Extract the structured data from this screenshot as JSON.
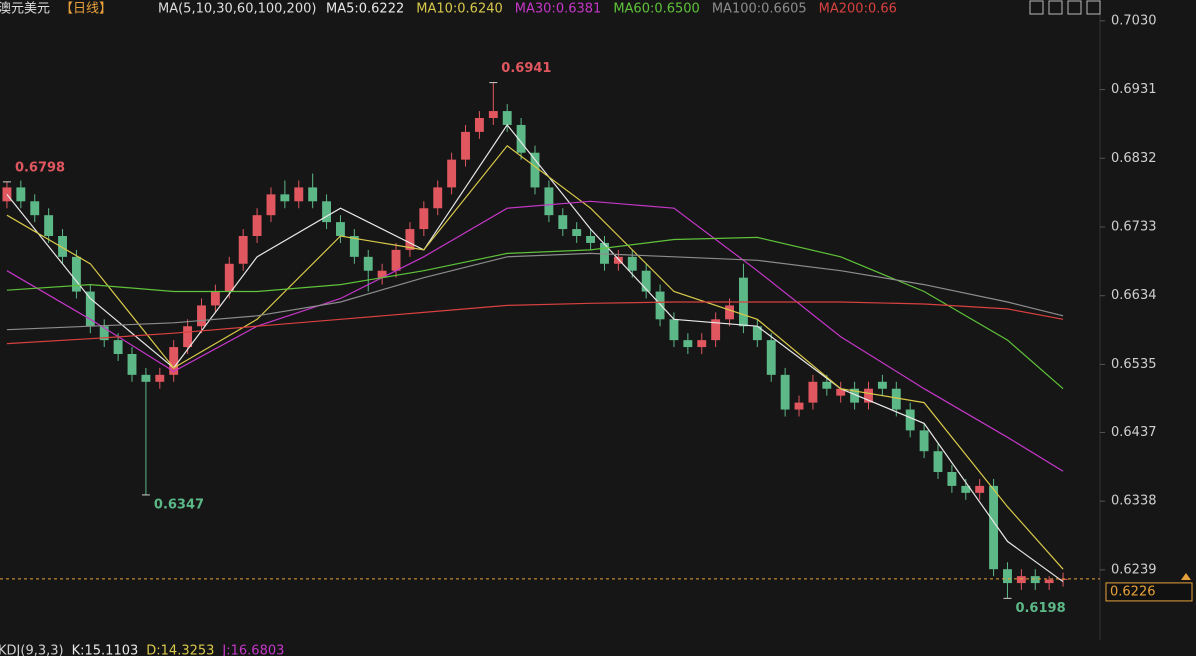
{
  "chart_data": {
    "type": "candlestick",
    "title": "澳元美元",
    "period": "【日线】",
    "ma_params": "MA(5,10,30,60,100,200)",
    "up_color": "#e0575f",
    "down_color": "#5db887",
    "open": [
      0.677,
      0.679,
      0.677,
      0.675,
      0.672,
      0.669,
      0.664,
      0.659,
      0.657,
      0.655,
      0.652,
      0.651,
      0.652,
      0.656,
      0.659,
      0.662,
      0.664,
      0.668,
      0.672,
      0.675,
      0.678,
      0.677,
      0.679,
      0.677,
      0.674,
      0.672,
      0.669,
      0.666,
      0.667,
      0.67,
      0.673,
      0.676,
      0.679,
      0.683,
      0.687,
      0.689,
      0.69,
      0.688,
      0.684,
      0.679,
      0.675,
      0.673,
      0.672,
      0.671,
      0.668,
      0.669,
      0.667,
      0.664,
      0.66,
      0.657,
      0.656,
      0.657,
      0.66,
      0.666,
      0.659,
      0.657,
      0.652,
      0.647,
      0.648,
      0.651,
      0.649,
      0.65,
      0.648,
      0.651,
      0.65,
      0.647,
      0.644,
      0.641,
      0.638,
      0.636,
      0.635,
      0.636,
      0.624,
      0.622,
      0.623,
      0.622,
      0.6225
    ],
    "high": [
      0.6798,
      0.68,
      0.678,
      0.676,
      0.673,
      0.67,
      0.665,
      0.66,
      0.658,
      0.656,
      0.653,
      0.653,
      0.657,
      0.66,
      0.663,
      0.665,
      0.669,
      0.673,
      0.676,
      0.679,
      0.68,
      0.68,
      0.681,
      0.678,
      0.675,
      0.673,
      0.67,
      0.668,
      0.671,
      0.674,
      0.677,
      0.68,
      0.684,
      0.688,
      0.69,
      0.6941,
      0.691,
      0.689,
      0.685,
      0.68,
      0.676,
      0.674,
      0.673,
      0.672,
      0.67,
      0.67,
      0.668,
      0.665,
      0.661,
      0.658,
      0.658,
      0.661,
      0.663,
      0.668,
      0.66,
      0.658,
      0.653,
      0.649,
      0.652,
      0.652,
      0.651,
      0.651,
      0.651,
      0.652,
      0.651,
      0.648,
      0.645,
      0.642,
      0.639,
      0.637,
      0.637,
      0.637,
      0.625,
      0.624,
      0.624,
      0.623,
      0.6235
    ],
    "low": [
      0.676,
      0.676,
      0.674,
      0.671,
      0.668,
      0.663,
      0.658,
      0.656,
      0.654,
      0.651,
      0.6347,
      0.65,
      0.651,
      0.655,
      0.658,
      0.661,
      0.663,
      0.667,
      0.671,
      0.674,
      0.676,
      0.676,
      0.676,
      0.673,
      0.671,
      0.668,
      0.664,
      0.665,
      0.666,
      0.669,
      0.672,
      0.675,
      0.678,
      0.682,
      0.686,
      0.688,
      0.687,
      0.683,
      0.678,
      0.674,
      0.672,
      0.671,
      0.67,
      0.667,
      0.667,
      0.666,
      0.663,
      0.659,
      0.656,
      0.655,
      0.655,
      0.656,
      0.659,
      0.658,
      0.656,
      0.651,
      0.646,
      0.646,
      0.647,
      0.649,
      0.648,
      0.647,
      0.647,
      0.649,
      0.646,
      0.643,
      0.64,
      0.637,
      0.635,
      0.634,
      0.634,
      0.623,
      0.6198,
      0.621,
      0.621,
      0.621,
      0.6215
    ],
    "close": [
      0.679,
      0.677,
      0.675,
      0.672,
      0.669,
      0.664,
      0.659,
      0.657,
      0.655,
      0.652,
      0.651,
      0.652,
      0.656,
      0.659,
      0.662,
      0.664,
      0.668,
      0.672,
      0.675,
      0.678,
      0.677,
      0.679,
      0.677,
      0.674,
      0.672,
      0.669,
      0.667,
      0.667,
      0.67,
      0.673,
      0.676,
      0.679,
      0.683,
      0.687,
      0.689,
      0.69,
      0.688,
      0.684,
      0.679,
      0.675,
      0.673,
      0.672,
      0.671,
      0.668,
      0.669,
      0.667,
      0.664,
      0.66,
      0.657,
      0.656,
      0.657,
      0.66,
      0.662,
      0.659,
      0.657,
      0.652,
      0.647,
      0.648,
      0.651,
      0.65,
      0.65,
      0.648,
      0.65,
      0.65,
      0.647,
      0.644,
      0.641,
      0.638,
      0.636,
      0.635,
      0.636,
      0.624,
      0.622,
      0.623,
      0.622,
      0.6225,
      0.6226
    ],
    "ma_x": [
      0,
      6,
      12,
      18,
      24,
      30,
      36,
      42,
      48,
      54,
      60,
      66,
      72,
      76
    ],
    "series": [
      {
        "name": "MA5:0.6222",
        "color": "#e8e8e8",
        "values": [
          0.678,
          0.663,
          0.653,
          0.669,
          0.676,
          0.67,
          0.688,
          0.673,
          0.66,
          0.659,
          0.65,
          0.645,
          0.628,
          0.6222
        ]
      },
      {
        "name": "MA10:0.6240",
        "color": "#d8c94a",
        "values": [
          0.675,
          0.668,
          0.653,
          0.66,
          0.672,
          0.67,
          0.685,
          0.676,
          0.664,
          0.66,
          0.65,
          0.648,
          0.633,
          0.624
        ]
      },
      {
        "name": "MA30:0.6381",
        "color": "#c437c8",
        "values": [
          0.667,
          0.66,
          0.6525,
          0.659,
          0.663,
          0.669,
          0.676,
          0.677,
          0.676,
          0.667,
          0.6575,
          0.65,
          0.643,
          0.6381
        ]
      },
      {
        "name": "MA60:0.6500",
        "color": "#5fc23a",
        "values": [
          0.6642,
          0.665,
          0.664,
          0.664,
          0.665,
          0.667,
          0.6695,
          0.67,
          0.6715,
          0.6718,
          0.669,
          0.664,
          0.657,
          0.65
        ]
      },
      {
        "name": "MA100:0.6605",
        "color": "#8c8c8c",
        "values": [
          0.6585,
          0.659,
          0.6595,
          0.6605,
          0.6625,
          0.666,
          0.669,
          0.6695,
          0.669,
          0.6685,
          0.667,
          0.665,
          0.6625,
          0.6605
        ]
      },
      {
        "name": "MA200:0.66",
        "color": "#d8413f",
        "values": [
          0.6565,
          0.6572,
          0.658,
          0.659,
          0.66,
          0.661,
          0.662,
          0.6623,
          0.6625,
          0.6625,
          0.6625,
          0.6622,
          0.6615,
          0.66
        ]
      }
    ],
    "ylim": [
      0.6138,
      0.706
    ],
    "yticks": [
      {
        "value": 0.703,
        "label": "0.7030"
      },
      0.6931,
      0.6832,
      0.6733,
      0.6634,
      0.6535,
      0.6437,
      0.6338,
      0.6239
    ],
    "indicator_labels": [
      {
        "text": "KDJ(9,3,3)",
        "color": "#cfcfcf"
      },
      {
        "text": "K:15.1103",
        "color": "#e8e8e8"
      },
      {
        "text": "D:14.3253",
        "color": "#d8c94a"
      },
      {
        "text": "J:16.6803",
        "color": "#c437c8"
      }
    ]
  }
}
